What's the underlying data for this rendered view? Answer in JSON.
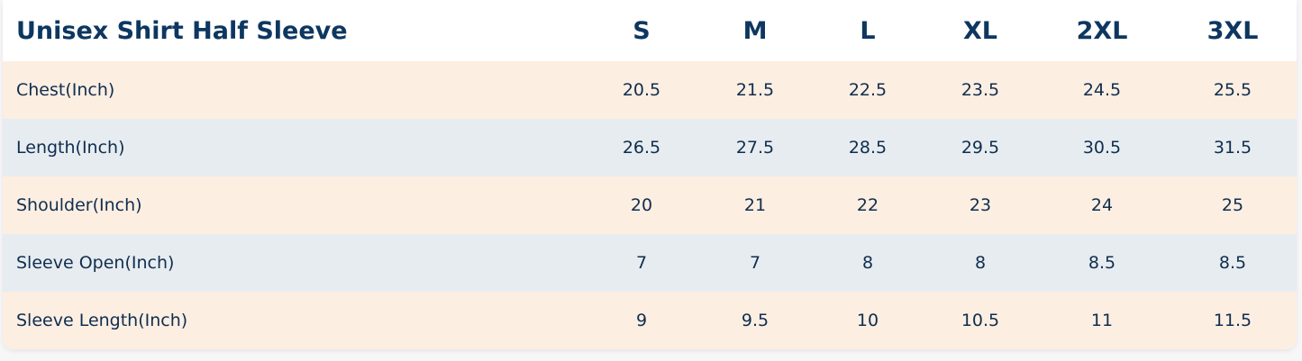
{
  "table": {
    "title": "Unisex Shirt Half Sleeve",
    "columns": [
      "S",
      "M",
      "L",
      "XL",
      "2XL",
      "3XL"
    ],
    "rows": [
      {
        "label": "Chest(Inch)",
        "values": [
          20.5,
          21.5,
          22.5,
          23.5,
          24.5,
          25.5
        ]
      },
      {
        "label": "Length(Inch)",
        "values": [
          26.5,
          27.5,
          28.5,
          29.5,
          30.5,
          31.5
        ]
      },
      {
        "label": "Shoulder(Inch)",
        "values": [
          20,
          21,
          22,
          23,
          24,
          25
        ]
      },
      {
        "label": "Sleeve Open(Inch)",
        "values": [
          7,
          7,
          8,
          8,
          8.5,
          8.5
        ]
      },
      {
        "label": "Sleeve Length(Inch)",
        "values": [
          9,
          9.5,
          10,
          10.5,
          11,
          11.5
        ]
      }
    ]
  }
}
